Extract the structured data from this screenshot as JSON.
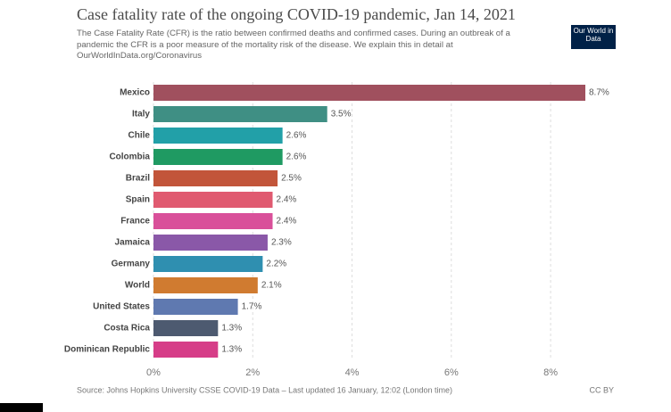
{
  "chart_data": {
    "type": "hbar",
    "title": "Case fatality rate of the ongoing COVID-19 pandemic, Jan 14, 2021",
    "subtitle": "The Case Fatality Rate (CFR) is the ratio between confirmed deaths and confirmed cases. During an outbreak of a pandemic the CFR is a poor measure of the mortality risk of the disease. We explain this in detail at OurWorldInData.org/Coronavirus",
    "logo": "Our World in Data",
    "source": "Source: Johns Hopkins University CSSE COVID-19 Data – Last updated 16 January, 12:02 (London time)",
    "license": "CC BY",
    "categories": [
      "Mexico",
      "Italy",
      "Chile",
      "Colombia",
      "Brazil",
      "Spain",
      "France",
      "Jamaica",
      "Germany",
      "World",
      "United States",
      "Costa Rica",
      "Dominican Republic"
    ],
    "values": [
      8.7,
      3.5,
      2.6,
      2.6,
      2.5,
      2.4,
      2.4,
      2.3,
      2.2,
      2.1,
      1.7,
      1.3,
      1.3
    ],
    "value_labels": [
      "8.7%",
      "3.5%",
      "2.6%",
      "2.6%",
      "2.5%",
      "2.4%",
      "2.4%",
      "2.3%",
      "2.2%",
      "2.1%",
      "1.7%",
      "1.3%",
      "1.3%"
    ],
    "colors": [
      "#a0505e",
      "#3f8f84",
      "#22a0a8",
      "#1f9a62",
      "#c2553a",
      "#e05a70",
      "#d9509a",
      "#8a58a8",
      "#2f8fb0",
      "#d07b30",
      "#5f79b0",
      "#4d5a70",
      "#d63d88"
    ],
    "xlim": [
      0,
      8.7
    ],
    "xticks": [
      {
        "value": 0,
        "label": "0%"
      },
      {
        "value": 2,
        "label": "2%"
      },
      {
        "value": 4,
        "label": "4%"
      },
      {
        "value": 6,
        "label": "6%"
      },
      {
        "value": 8,
        "label": "8%"
      }
    ],
    "grid": true
  }
}
